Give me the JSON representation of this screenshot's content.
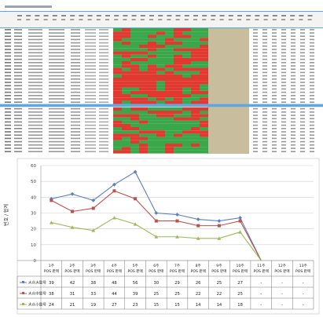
{
  "chart_data": {
    "type": "line",
    "ylabel": "번호 / 합계",
    "ylim": [
      0,
      60
    ],
    "yticks": [
      0,
      10,
      20,
      30,
      40,
      50,
      60
    ],
    "categories": [
      "1주 POS 판매",
      "2주 POS 판매",
      "3주 POS 판매",
      "4주 POS 판매",
      "5주 POS 판매",
      "6주 POS 판매",
      "7주 POS 판매",
      "8주 POS 판매",
      "9주 POS 판매",
      "10주 POS 판매",
      "11주 POS 판매",
      "12주 POS 판매",
      "13주 POS 판매"
    ],
    "series": [
      {
        "name": "大众大型号",
        "color": "#5b7fc4",
        "values": [
          39,
          42,
          38,
          48,
          56,
          30,
          29,
          26,
          25,
          27,
          null,
          null,
          null
        ]
      },
      {
        "name": "大众中型号",
        "color": "#c0504d",
        "values": [
          38,
          31,
          33,
          44,
          39,
          25,
          25,
          22,
          22,
          25,
          null,
          null,
          null
        ]
      },
      {
        "name": "大众小型号",
        "color": "#9bbb59",
        "values": [
          24,
          21,
          19,
          27,
          23,
          15,
          15,
          14,
          14,
          18,
          null,
          null,
          null
        ]
      }
    ],
    "table_rows": [
      {
        "label": "大众大型号",
        "cells": [
          "39",
          "42",
          "38",
          "48",
          "56",
          "30",
          "29",
          "26",
          "25",
          "27",
          "-",
          "-",
          "-"
        ]
      },
      {
        "label": "大众中型号",
        "cells": [
          "38",
          "31",
          "33",
          "44",
          "39",
          "25",
          "25",
          "22",
          "22",
          "25",
          "-",
          "-",
          "-"
        ]
      },
      {
        "label": "大众小型号",
        "cells": [
          "24",
          "21",
          "19",
          "27",
          "23",
          "15",
          "15",
          "14",
          "14",
          "18",
          "-",
          "-",
          "-"
        ]
      }
    ]
  }
}
